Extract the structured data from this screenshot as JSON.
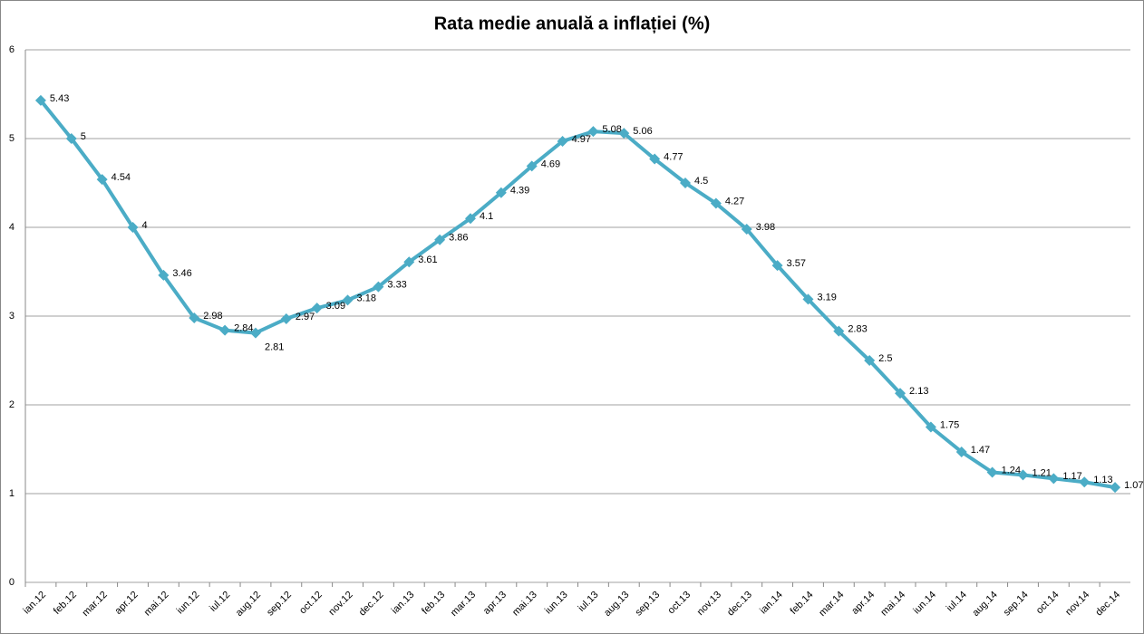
{
  "chart_data": {
    "type": "line",
    "title": "Rata medie anuală a inflației (%)",
    "categories": [
      "ian.12",
      "feb.12",
      "mar.12",
      "apr.12",
      "mai.12",
      "iun.12",
      "iul.12",
      "aug.12",
      "sep.12",
      "oct.12",
      "nov.12",
      "dec.12",
      "ian.13",
      "feb.13",
      "mar.13",
      "apr.13",
      "mai.13",
      "iun.13",
      "iul.13",
      "aug.13",
      "sep.13",
      "oct.13",
      "nov.13",
      "dec.13",
      "ian.14",
      "feb.14",
      "mar.14",
      "apr.14",
      "mai.14",
      "iun.14",
      "iul.14",
      "aug.14",
      "sep.14",
      "oct.14",
      "nov.14",
      "dec.14"
    ],
    "values": [
      5.43,
      5,
      4.54,
      4,
      3.46,
      2.98,
      2.84,
      2.81,
      2.97,
      3.09,
      3.18,
      3.33,
      3.61,
      3.86,
      4.1,
      4.39,
      4.69,
      4.97,
      5.08,
      5.06,
      4.77,
      4.5,
      4.27,
      3.98,
      3.57,
      3.19,
      2.83,
      2.5,
      2.13,
      1.75,
      1.47,
      1.24,
      1.21,
      1.17,
      1.13,
      1.07
    ],
    "color": "#4bacc6",
    "ylim": [
      0,
      6
    ],
    "yticks": [
      0,
      1,
      2,
      3,
      4,
      5,
      6
    ],
    "grid": true
  }
}
